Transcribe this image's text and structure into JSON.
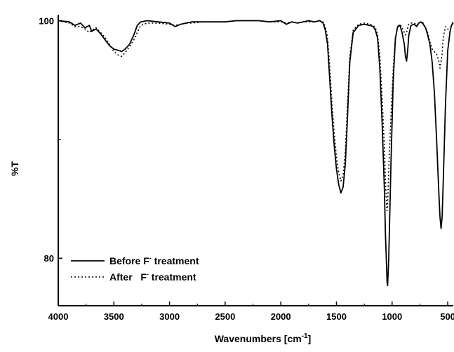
{
  "chart_data": {
    "type": "line",
    "title": "",
    "xlabel": "Wavenumbers [cm",
    "xlabel_sup": "-1",
    "xlabel_close": "]",
    "ylabel": "%T",
    "xlim": [
      4000,
      450
    ],
    "ylim": [
      76,
      100.5
    ],
    "x_reversed": true,
    "x_ticks": [
      {
        "value": 4000,
        "label": "4000"
      },
      {
        "value": 3500,
        "label": "3500"
      },
      {
        "value": 3000,
        "label": "3000"
      },
      {
        "value": 2500,
        "label": "2500"
      },
      {
        "value": 2000,
        "label": "2000"
      },
      {
        "value": 1500,
        "label": "1500"
      },
      {
        "value": 1000,
        "label": "1000"
      },
      {
        "value": 500,
        "label": "500"
      }
    ],
    "y_ticks": [
      {
        "value": 100,
        "label": "100"
      },
      {
        "value": 80,
        "label": "80"
      }
    ],
    "y_minor_ticks": [
      90
    ],
    "grid": false,
    "legend_position": "bottom-left",
    "series": [
      {
        "name": "Before F- treatment",
        "legend_prefix": "Before F",
        "legend_sup": "-",
        "legend_suffix": " treatment",
        "style": "solid",
        "color": "#000000",
        "x": [
          4000,
          3900,
          3850,
          3800,
          3760,
          3720,
          3700,
          3660,
          3620,
          3580,
          3540,
          3500,
          3460,
          3430,
          3400,
          3360,
          3320,
          3290,
          3260,
          3200,
          3100,
          3000,
          2950,
          2900,
          2850,
          2800,
          2700,
          2600,
          2500,
          2400,
          2300,
          2200,
          2100,
          2000,
          1950,
          1900,
          1850,
          1800,
          1750,
          1700,
          1650,
          1620,
          1600,
          1580,
          1560,
          1540,
          1520,
          1500,
          1480,
          1460,
          1440,
          1420,
          1400,
          1380,
          1350,
          1300,
          1250,
          1200,
          1170,
          1150,
          1130,
          1110,
          1090,
          1070,
          1060,
          1050,
          1045,
          1040,
          1030,
          1010,
          990,
          970,
          950,
          930,
          910,
          890,
          880,
          870,
          860,
          850,
          830,
          800,
          780,
          760,
          740,
          720,
          700,
          680,
          660,
          640,
          620,
          600,
          580,
          570,
          560,
          550,
          540,
          520,
          500,
          480,
          470,
          460,
          450
        ],
        "y": [
          100,
          99.9,
          99.6,
          99.8,
          99.4,
          99.6,
          99.1,
          99.3,
          98.9,
          98.4,
          97.9,
          97.6,
          97.5,
          97.4,
          97.6,
          98.0,
          98.8,
          99.6,
          99.9,
          100,
          99.9,
          99.8,
          99.5,
          99.7,
          99.8,
          99.9,
          99.9,
          99.9,
          99.9,
          100,
          100,
          100,
          99.9,
          100,
          99.7,
          99.9,
          99.8,
          99.9,
          100,
          99.9,
          100,
          99.8,
          99.2,
          98.0,
          95.0,
          92.0,
          89.5,
          87.5,
          86.2,
          85.5,
          86.0,
          88.0,
          92.0,
          96.5,
          99.0,
          99.6,
          99.7,
          99.6,
          99.5,
          99.2,
          98.5,
          96.0,
          91.5,
          86.0,
          82.0,
          79.5,
          78.0,
          77.7,
          80.0,
          88.0,
          95.0,
          98.5,
          99.5,
          99.6,
          99.0,
          98.0,
          97.0,
          96.6,
          97.5,
          98.8,
          99.6,
          99.7,
          99.5,
          99.8,
          99.9,
          99.7,
          99.4,
          98.8,
          98.0,
          96.5,
          94.0,
          90.0,
          85.5,
          83.5,
          82.5,
          83.5,
          86.5,
          93.0,
          97.5,
          99.0,
          99.5,
          99.7,
          99.8
        ]
      },
      {
        "name": "After F- treatment",
        "legend_prefix": "After   F",
        "legend_sup": "-",
        "legend_suffix": " treatment",
        "style": "dotted",
        "color": "#000000",
        "x": [
          4000,
          3900,
          3850,
          3800,
          3760,
          3720,
          3700,
          3660,
          3620,
          3580,
          3540,
          3500,
          3460,
          3430,
          3400,
          3360,
          3320,
          3290,
          3260,
          3200,
          3100,
          3000,
          2950,
          2900,
          2850,
          2800,
          2700,
          2600,
          2500,
          2400,
          2300,
          2200,
          2100,
          2000,
          1950,
          1900,
          1850,
          1800,
          1750,
          1700,
          1650,
          1620,
          1600,
          1580,
          1560,
          1540,
          1520,
          1500,
          1480,
          1460,
          1440,
          1420,
          1400,
          1380,
          1350,
          1300,
          1250,
          1200,
          1170,
          1150,
          1130,
          1110,
          1090,
          1070,
          1060,
          1050,
          1045,
          1040,
          1030,
          1010,
          990,
          970,
          950,
          930,
          910,
          890,
          880,
          870,
          860,
          850,
          830,
          800,
          780,
          760,
          740,
          720,
          700,
          680,
          660,
          640,
          620,
          600,
          580,
          570,
          560,
          550,
          540,
          520,
          500,
          480,
          470,
          460,
          450
        ],
        "y": [
          100,
          99.8,
          99.5,
          99.5,
          99.3,
          99.0,
          99.2,
          99.4,
          99.0,
          98.6,
          98.0,
          97.4,
          97.1,
          97.0,
          97.3,
          97.8,
          98.4,
          99.0,
          99.6,
          99.8,
          99.8,
          99.7,
          99.6,
          99.7,
          99.8,
          99.8,
          99.9,
          99.9,
          99.9,
          100,
          100,
          100,
          99.9,
          99.9,
          99.8,
          99.9,
          99.8,
          99.9,
          99.9,
          99.9,
          100,
          99.9,
          99.5,
          98.6,
          96.0,
          93.0,
          90.5,
          88.5,
          87.2,
          86.5,
          87.0,
          89.0,
          93.0,
          97.0,
          99.2,
          99.7,
          99.8,
          99.7,
          99.6,
          99.4,
          98.8,
          97.0,
          93.5,
          89.5,
          86.5,
          84.5,
          84.0,
          84.5,
          87.5,
          92.0,
          96.0,
          98.5,
          99.5,
          99.7,
          99.4,
          99.0,
          98.8,
          99.0,
          99.4,
          99.7,
          99.8,
          99.8,
          99.6,
          99.8,
          99.9,
          99.8,
          99.4,
          99.0,
          98.2,
          97.6,
          97.4,
          97.2,
          96.6,
          96.0,
          96.6,
          97.2,
          98.6,
          99.5,
          99.3,
          99.0,
          99.4,
          99.8,
          99.9
        ]
      }
    ]
  }
}
